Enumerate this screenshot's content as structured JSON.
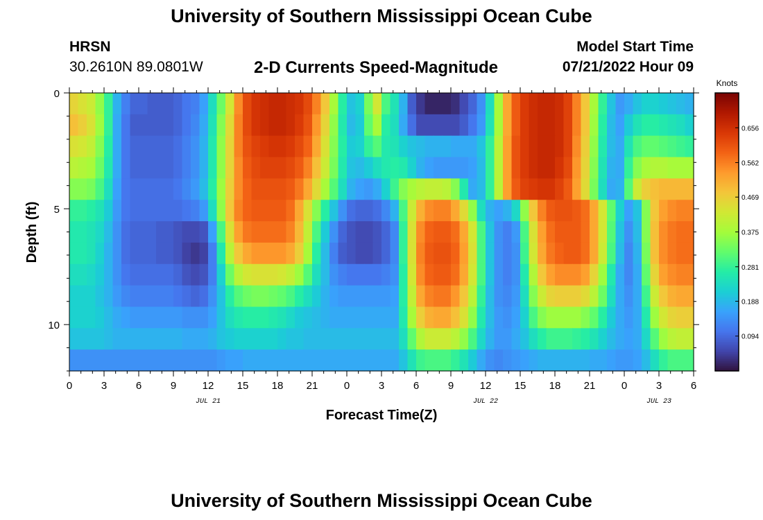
{
  "page": {
    "title": "University of Southern Mississippi Ocean Cube",
    "station": "HRSN",
    "coordinates": "30.2610N  89.0801W",
    "subtitle": "2-D Currents Speed-Magnitude",
    "model_start_label": "Model Start Time",
    "model_start_value": "07/21/2022 Hour 09",
    "footer_title": "University of Southern Mississippi Ocean Cube"
  },
  "chart_data": {
    "type": "heatmap",
    "title": "2-D Currents Speed-Magnitude",
    "xlabel": "Forecast Time(Z)",
    "ylabel": "Depth (ft)",
    "x_tick_labels": [
      "0",
      "3",
      "6",
      "9",
      "12",
      "15",
      "18",
      "21",
      "0",
      "3",
      "6",
      "9",
      "12",
      "15",
      "18",
      "21",
      "0",
      "3",
      "6"
    ],
    "x_tick_hours": [
      0,
      3,
      6,
      9,
      12,
      15,
      18,
      21,
      24,
      27,
      30,
      33,
      36,
      39,
      42,
      45,
      48,
      51,
      54
    ],
    "xlim_hours": [
      0,
      54
    ],
    "date_labels": [
      {
        "text": "JUL 21",
        "hour": 12
      },
      {
        "text": "JUL 22",
        "hour": 36
      },
      {
        "text": "JUL 23",
        "hour": 51
      }
    ],
    "y_tick_labels": [
      "0",
      "5",
      "10"
    ],
    "y_tick_values": [
      0,
      5,
      10
    ],
    "ylim": [
      0,
      12
    ],
    "y_inverted": true,
    "colorbar": {
      "unit": "Knots",
      "min": 0.0,
      "max": 0.75,
      "tick_labels": [
        "0.094",
        "0.188",
        "0.281",
        "0.375",
        "0.469",
        "0.562",
        "0.656"
      ],
      "tick_values": [
        0.094,
        0.188,
        0.281,
        0.375,
        0.469,
        0.562,
        0.656
      ],
      "colors": [
        "#30123b",
        "#4145ab",
        "#4675ed",
        "#39a2fc",
        "#1bcfd4",
        "#24eca6",
        "#61fc6c",
        "#a4fc3b",
        "#d1e834",
        "#f3c63a",
        "#fe9b2d",
        "#f36315",
        "#d93806",
        "#b11901",
        "#7a0403"
      ]
    },
    "grid": false,
    "speed_knots": [
      [
        0.46,
        0.44,
        0.42,
        0.36,
        0.28,
        0.18,
        0.12,
        0.09,
        0.09,
        0.08,
        0.08,
        0.08,
        0.09,
        0.11,
        0.12,
        0.16,
        0.24,
        0.33,
        0.43,
        0.55,
        0.62,
        0.65,
        0.66,
        0.67,
        0.67,
        0.66,
        0.65,
        0.62,
        0.56,
        0.48,
        0.38,
        0.27,
        0.2,
        0.22,
        0.34,
        0.43,
        0.3,
        0.25,
        0.18,
        0.08,
        0.04,
        0.02,
        0.02,
        0.02,
        0.03,
        0.06,
        0.09,
        0.14,
        0.24,
        0.38,
        0.52,
        0.6,
        0.64,
        0.66,
        0.67,
        0.67,
        0.66,
        0.63,
        0.56,
        0.48,
        0.38,
        0.28,
        0.2,
        0.15,
        0.17,
        0.2,
        0.22,
        0.22,
        0.21,
        0.2,
        0.19,
        0.18
      ],
      [
        0.49,
        0.47,
        0.44,
        0.37,
        0.28,
        0.17,
        0.11,
        0.08,
        0.08,
        0.08,
        0.08,
        0.08,
        0.09,
        0.11,
        0.13,
        0.17,
        0.25,
        0.35,
        0.45,
        0.56,
        0.62,
        0.65,
        0.66,
        0.67,
        0.67,
        0.66,
        0.64,
        0.61,
        0.54,
        0.46,
        0.36,
        0.26,
        0.19,
        0.21,
        0.32,
        0.38,
        0.27,
        0.24,
        0.17,
        0.1,
        0.06,
        0.06,
        0.06,
        0.06,
        0.06,
        0.08,
        0.11,
        0.15,
        0.25,
        0.38,
        0.52,
        0.6,
        0.64,
        0.66,
        0.67,
        0.67,
        0.66,
        0.63,
        0.56,
        0.48,
        0.37,
        0.27,
        0.19,
        0.16,
        0.21,
        0.25,
        0.27,
        0.27,
        0.26,
        0.25,
        0.24,
        0.22
      ],
      [
        0.44,
        0.43,
        0.41,
        0.35,
        0.27,
        0.17,
        0.11,
        0.09,
        0.09,
        0.09,
        0.09,
        0.09,
        0.1,
        0.12,
        0.14,
        0.18,
        0.26,
        0.36,
        0.46,
        0.56,
        0.61,
        0.63,
        0.64,
        0.65,
        0.65,
        0.64,
        0.62,
        0.59,
        0.52,
        0.44,
        0.35,
        0.27,
        0.21,
        0.22,
        0.28,
        0.31,
        0.26,
        0.25,
        0.22,
        0.2,
        0.19,
        0.18,
        0.18,
        0.18,
        0.17,
        0.17,
        0.17,
        0.2,
        0.28,
        0.4,
        0.53,
        0.61,
        0.64,
        0.66,
        0.67,
        0.67,
        0.66,
        0.63,
        0.55,
        0.47,
        0.36,
        0.26,
        0.19,
        0.17,
        0.25,
        0.3,
        0.32,
        0.32,
        0.31,
        0.3,
        0.29,
        0.28
      ],
      [
        0.4,
        0.39,
        0.38,
        0.33,
        0.26,
        0.17,
        0.11,
        0.09,
        0.09,
        0.09,
        0.09,
        0.09,
        0.1,
        0.12,
        0.14,
        0.18,
        0.26,
        0.36,
        0.46,
        0.55,
        0.6,
        0.62,
        0.63,
        0.63,
        0.63,
        0.62,
        0.6,
        0.56,
        0.49,
        0.42,
        0.34,
        0.26,
        0.2,
        0.19,
        0.21,
        0.24,
        0.26,
        0.27,
        0.26,
        0.22,
        0.18,
        0.16,
        0.15,
        0.15,
        0.15,
        0.15,
        0.16,
        0.19,
        0.28,
        0.4,
        0.53,
        0.61,
        0.64,
        0.66,
        0.67,
        0.67,
        0.65,
        0.62,
        0.54,
        0.46,
        0.35,
        0.25,
        0.18,
        0.17,
        0.28,
        0.35,
        0.38,
        0.39,
        0.39,
        0.38,
        0.38,
        0.38
      ],
      [
        0.35,
        0.35,
        0.34,
        0.3,
        0.24,
        0.16,
        0.11,
        0.1,
        0.1,
        0.1,
        0.1,
        0.1,
        0.11,
        0.13,
        0.15,
        0.19,
        0.27,
        0.37,
        0.47,
        0.55,
        0.59,
        0.61,
        0.61,
        0.61,
        0.61,
        0.6,
        0.57,
        0.52,
        0.45,
        0.38,
        0.31,
        0.24,
        0.18,
        0.16,
        0.15,
        0.17,
        0.22,
        0.29,
        0.35,
        0.38,
        0.4,
        0.41,
        0.41,
        0.4,
        0.35,
        0.26,
        0.17,
        0.19,
        0.28,
        0.4,
        0.53,
        0.6,
        0.63,
        0.64,
        0.65,
        0.65,
        0.63,
        0.6,
        0.53,
        0.45,
        0.34,
        0.24,
        0.17,
        0.18,
        0.31,
        0.42,
        0.47,
        0.49,
        0.5,
        0.5,
        0.5,
        0.5
      ],
      [
        0.28,
        0.28,
        0.27,
        0.25,
        0.21,
        0.15,
        0.11,
        0.1,
        0.1,
        0.1,
        0.1,
        0.1,
        0.1,
        0.11,
        0.12,
        0.15,
        0.24,
        0.36,
        0.48,
        0.56,
        0.59,
        0.6,
        0.6,
        0.6,
        0.6,
        0.58,
        0.52,
        0.44,
        0.35,
        0.27,
        0.2,
        0.14,
        0.1,
        0.09,
        0.09,
        0.1,
        0.13,
        0.18,
        0.3,
        0.42,
        0.51,
        0.55,
        0.56,
        0.56,
        0.52,
        0.45,
        0.36,
        0.24,
        0.18,
        0.16,
        0.18,
        0.23,
        0.36,
        0.48,
        0.56,
        0.6,
        0.61,
        0.61,
        0.6,
        0.58,
        0.52,
        0.43,
        0.32,
        0.22,
        0.16,
        0.2,
        0.35,
        0.48,
        0.53,
        0.55,
        0.56,
        0.56
      ],
      [
        0.26,
        0.26,
        0.25,
        0.23,
        0.19,
        0.14,
        0.1,
        0.09,
        0.09,
        0.09,
        0.08,
        0.08,
        0.07,
        0.06,
        0.06,
        0.07,
        0.16,
        0.3,
        0.44,
        0.53,
        0.57,
        0.58,
        0.58,
        0.58,
        0.58,
        0.56,
        0.5,
        0.41,
        0.3,
        0.21,
        0.14,
        0.09,
        0.07,
        0.06,
        0.06,
        0.07,
        0.09,
        0.13,
        0.28,
        0.44,
        0.55,
        0.59,
        0.6,
        0.6,
        0.58,
        0.52,
        0.43,
        0.3,
        0.2,
        0.14,
        0.12,
        0.15,
        0.3,
        0.44,
        0.53,
        0.58,
        0.6,
        0.6,
        0.6,
        0.58,
        0.52,
        0.43,
        0.31,
        0.2,
        0.14,
        0.19,
        0.35,
        0.49,
        0.55,
        0.57,
        0.58,
        0.58
      ],
      [
        0.26,
        0.26,
        0.25,
        0.22,
        0.18,
        0.14,
        0.1,
        0.09,
        0.09,
        0.09,
        0.08,
        0.08,
        0.07,
        0.05,
        0.04,
        0.05,
        0.12,
        0.26,
        0.4,
        0.48,
        0.52,
        0.54,
        0.54,
        0.54,
        0.54,
        0.52,
        0.47,
        0.38,
        0.27,
        0.19,
        0.12,
        0.08,
        0.07,
        0.06,
        0.06,
        0.07,
        0.09,
        0.13,
        0.28,
        0.44,
        0.56,
        0.6,
        0.61,
        0.61,
        0.59,
        0.53,
        0.44,
        0.3,
        0.2,
        0.14,
        0.12,
        0.14,
        0.29,
        0.43,
        0.52,
        0.57,
        0.59,
        0.6,
        0.6,
        0.58,
        0.52,
        0.42,
        0.3,
        0.19,
        0.13,
        0.18,
        0.34,
        0.49,
        0.55,
        0.57,
        0.58,
        0.58
      ],
      [
        0.24,
        0.24,
        0.23,
        0.21,
        0.18,
        0.14,
        0.11,
        0.1,
        0.1,
        0.1,
        0.1,
        0.1,
        0.09,
        0.07,
        0.06,
        0.07,
        0.12,
        0.22,
        0.33,
        0.4,
        0.43,
        0.44,
        0.44,
        0.44,
        0.43,
        0.41,
        0.37,
        0.31,
        0.24,
        0.19,
        0.14,
        0.12,
        0.11,
        0.11,
        0.11,
        0.11,
        0.12,
        0.14,
        0.27,
        0.43,
        0.55,
        0.59,
        0.6,
        0.6,
        0.58,
        0.52,
        0.43,
        0.3,
        0.2,
        0.14,
        0.12,
        0.14,
        0.26,
        0.39,
        0.48,
        0.53,
        0.55,
        0.55,
        0.55,
        0.53,
        0.46,
        0.37,
        0.26,
        0.17,
        0.13,
        0.17,
        0.32,
        0.46,
        0.53,
        0.55,
        0.56,
        0.56
      ],
      [
        0.22,
        0.22,
        0.22,
        0.2,
        0.18,
        0.15,
        0.13,
        0.12,
        0.12,
        0.12,
        0.12,
        0.12,
        0.11,
        0.1,
        0.09,
        0.1,
        0.14,
        0.2,
        0.27,
        0.31,
        0.33,
        0.34,
        0.34,
        0.33,
        0.32,
        0.3,
        0.27,
        0.24,
        0.21,
        0.18,
        0.16,
        0.15,
        0.15,
        0.15,
        0.15,
        0.15,
        0.15,
        0.16,
        0.27,
        0.41,
        0.52,
        0.56,
        0.57,
        0.57,
        0.54,
        0.48,
        0.4,
        0.28,
        0.19,
        0.14,
        0.13,
        0.15,
        0.24,
        0.35,
        0.42,
        0.46,
        0.47,
        0.47,
        0.47,
        0.45,
        0.4,
        0.33,
        0.24,
        0.17,
        0.14,
        0.17,
        0.29,
        0.42,
        0.48,
        0.51,
        0.52,
        0.52
      ],
      [
        0.22,
        0.22,
        0.22,
        0.21,
        0.19,
        0.17,
        0.16,
        0.15,
        0.15,
        0.15,
        0.15,
        0.15,
        0.15,
        0.14,
        0.14,
        0.14,
        0.16,
        0.2,
        0.24,
        0.26,
        0.27,
        0.27,
        0.27,
        0.26,
        0.25,
        0.23,
        0.21,
        0.2,
        0.19,
        0.18,
        0.17,
        0.17,
        0.17,
        0.17,
        0.17,
        0.17,
        0.17,
        0.17,
        0.26,
        0.38,
        0.47,
        0.51,
        0.52,
        0.52,
        0.49,
        0.44,
        0.36,
        0.26,
        0.19,
        0.15,
        0.14,
        0.16,
        0.22,
        0.3,
        0.35,
        0.37,
        0.37,
        0.37,
        0.37,
        0.35,
        0.32,
        0.27,
        0.21,
        0.17,
        0.15,
        0.17,
        0.26,
        0.37,
        0.43,
        0.46,
        0.47,
        0.47
      ],
      [
        0.2,
        0.2,
        0.2,
        0.2,
        0.19,
        0.18,
        0.18,
        0.18,
        0.18,
        0.18,
        0.18,
        0.18,
        0.18,
        0.17,
        0.17,
        0.17,
        0.18,
        0.2,
        0.21,
        0.22,
        0.22,
        0.22,
        0.22,
        0.22,
        0.21,
        0.2,
        0.2,
        0.19,
        0.19,
        0.19,
        0.19,
        0.19,
        0.19,
        0.19,
        0.19,
        0.19,
        0.19,
        0.19,
        0.24,
        0.32,
        0.39,
        0.42,
        0.42,
        0.42,
        0.4,
        0.36,
        0.3,
        0.23,
        0.18,
        0.15,
        0.15,
        0.17,
        0.2,
        0.24,
        0.27,
        0.29,
        0.29,
        0.29,
        0.28,
        0.27,
        0.25,
        0.22,
        0.19,
        0.17,
        0.16,
        0.17,
        0.23,
        0.31,
        0.37,
        0.4,
        0.41,
        0.41
      ],
      [
        0.14,
        0.14,
        0.14,
        0.14,
        0.14,
        0.14,
        0.14,
        0.14,
        0.14,
        0.14,
        0.14,
        0.14,
        0.14,
        0.14,
        0.14,
        0.14,
        0.14,
        0.15,
        0.16,
        0.16,
        0.17,
        0.17,
        0.17,
        0.17,
        0.17,
        0.17,
        0.17,
        0.17,
        0.17,
        0.17,
        0.17,
        0.17,
        0.17,
        0.17,
        0.17,
        0.17,
        0.17,
        0.17,
        0.2,
        0.25,
        0.29,
        0.3,
        0.3,
        0.3,
        0.28,
        0.25,
        0.21,
        0.17,
        0.14,
        0.13,
        0.14,
        0.15,
        0.16,
        0.17,
        0.18,
        0.18,
        0.18,
        0.18,
        0.18,
        0.18,
        0.17,
        0.17,
        0.16,
        0.15,
        0.15,
        0.16,
        0.19,
        0.24,
        0.28,
        0.3,
        0.3,
        0.3
      ]
    ]
  }
}
